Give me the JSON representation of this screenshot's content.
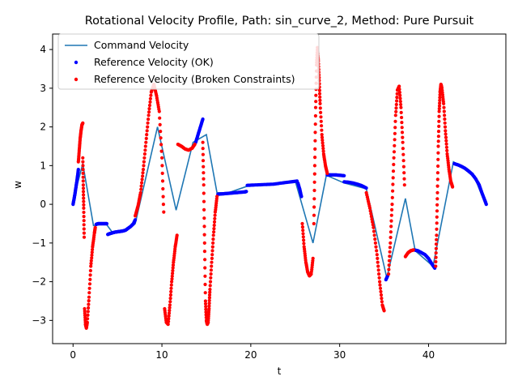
{
  "chart_data": {
    "type": "line",
    "title": "Rotational Velocity Profile, Path: sin_curve_2, Method: Pure Pursuit",
    "xlabel": "t",
    "ylabel": "w",
    "xlim": [
      -2.3,
      48.7
    ],
    "ylim": [
      -3.6,
      4.4
    ],
    "xticks": [
      0,
      10,
      20,
      30,
      40
    ],
    "yticks": [
      -3,
      -2,
      -1,
      0,
      1,
      2,
      3,
      4
    ],
    "grid": false,
    "legend_position": "top-left",
    "colors": {
      "command": "#1f77b4",
      "ok": "#0000ff",
      "broken": "#ff0000"
    },
    "series": [
      {
        "name": "Command Velocity",
        "kind": "line",
        "x": [
          0,
          1.1,
          2.3,
          3.7,
          4.5,
          6.5,
          7.0,
          9.5,
          11.6,
          13.5,
          15.0,
          16.2,
          17.5,
          20.0,
          23.0,
          25.0,
          27.0,
          28.5,
          30.5,
          33.0,
          35.3,
          37.4,
          38.5,
          40.5,
          42.8,
          45.0,
          46.4
        ],
        "y": [
          0.1,
          1.05,
          -0.55,
          -0.5,
          -0.75,
          -0.6,
          -0.5,
          2.0,
          -0.15,
          1.6,
          1.8,
          0.3,
          0.3,
          0.5,
          0.55,
          0.6,
          -1.0,
          0.75,
          0.55,
          0.4,
          -1.9,
          0.15,
          -1.2,
          -1.6,
          1.1,
          0.8,
          0.0
        ]
      },
      {
        "name": "Reference Velocity (OK)",
        "kind": "scatter",
        "segments": [
          {
            "x": [
              0,
              0.1,
              0.2,
              0.3,
              0.4,
              0.5,
              0.6
            ],
            "y": [
              0.0,
              0.12,
              0.25,
              0.4,
              0.55,
              0.72,
              0.9
            ]
          },
          {
            "x": [
              2.6,
              2.8,
              3.0,
              3.2,
              3.4,
              3.6,
              3.8
            ],
            "y": [
              -0.52,
              -0.5,
              -0.5,
              -0.5,
              -0.5,
              -0.5,
              -0.5
            ]
          },
          {
            "x": [
              3.9,
              4.1,
              4.4,
              4.7,
              5.0,
              5.3,
              5.6,
              5.9,
              6.2,
              6.5,
              6.8,
              7.0
            ],
            "y": [
              -0.78,
              -0.76,
              -0.74,
              -0.72,
              -0.71,
              -0.7,
              -0.69,
              -0.67,
              -0.62,
              -0.57,
              -0.5,
              -0.4
            ]
          },
          {
            "x": [
              13.8,
              14.0,
              14.2,
              14.4,
              14.6
            ],
            "y": [
              1.6,
              1.75,
              1.9,
              2.05,
              2.2
            ]
          },
          {
            "x": [
              16.3,
              16.8,
              17.3,
              17.8,
              18.3,
              18.8,
              19.3,
              19.5
            ],
            "y": [
              0.26,
              0.27,
              0.28,
              0.29,
              0.3,
              0.31,
              0.32,
              0.33
            ]
          },
          {
            "x": [
              19.6,
              20.5,
              21.5,
              22.5,
              23.5,
              24.5,
              25.2
            ],
            "y": [
              0.49,
              0.5,
              0.51,
              0.52,
              0.55,
              0.58,
              0.6
            ]
          },
          {
            "x": [
              25.3,
              25.5,
              25.7
            ],
            "y": [
              0.55,
              0.4,
              0.2
            ]
          },
          {
            "x": [
              28.6,
              29.0,
              29.5,
              30.0,
              30.5
            ],
            "y": [
              0.76,
              0.76,
              0.76,
              0.75,
              0.74
            ]
          },
          {
            "x": [
              30.5,
              31.0,
              31.5,
              32.0,
              32.5,
              33.0
            ],
            "y": [
              0.58,
              0.57,
              0.55,
              0.52,
              0.48,
              0.42
            ]
          },
          {
            "x": [
              35.2,
              35.4
            ],
            "y": [
              -1.95,
              -1.85
            ]
          },
          {
            "x": [
              38.4,
              38.8,
              39.2,
              39.6,
              40.0,
              40.4,
              40.7
            ],
            "y": [
              -1.18,
              -1.2,
              -1.25,
              -1.3,
              -1.4,
              -1.55,
              -1.65
            ]
          },
          {
            "x": [
              42.9,
              43.3,
              43.7,
              44.1,
              44.5,
              44.9,
              45.3,
              45.7,
              46.0,
              46.3,
              46.5
            ],
            "y": [
              1.05,
              1.02,
              0.98,
              0.93,
              0.86,
              0.78,
              0.66,
              0.5,
              0.3,
              0.12,
              0.0
            ]
          }
        ]
      },
      {
        "name": "Reference Velocity (Broken Constraints)",
        "kind": "scatter",
        "segments": [
          {
            "x": [
              0.6,
              0.7,
              0.8,
              0.9,
              1.0,
              1.1
            ],
            "y": [
              1.1,
              1.4,
              1.7,
              1.9,
              2.05,
              2.1
            ]
          },
          {
            "x": [
              1.1,
              1.15,
              1.2,
              1.25
            ],
            "y": [
              1.2,
              0.5,
              -0.1,
              -0.85
            ]
          },
          {
            "x": [
              1.3,
              1.4,
              1.5,
              1.6,
              1.8,
              2.0,
              2.2,
              2.4,
              2.5
            ],
            "y": [
              -2.7,
              -3.1,
              -3.2,
              -3.05,
              -2.4,
              -1.6,
              -1.1,
              -0.75,
              -0.6
            ]
          },
          {
            "x": [
              7.0,
              7.3,
              7.6,
              7.9,
              8.2,
              8.5,
              8.8,
              9.1,
              9.4,
              9.7,
              10.0,
              10.2
            ],
            "y": [
              -0.3,
              -0.05,
              0.3,
              0.9,
              1.6,
              2.3,
              2.9,
              3.1,
              2.8,
              2.4,
              1.2,
              -0.2
            ]
          },
          {
            "x": [
              10.3,
              10.5,
              10.7,
              10.9,
              11.1,
              11.3,
              11.5,
              11.7
            ],
            "y": [
              -2.7,
              -3.05,
              -3.1,
              -2.6,
              -2.0,
              -1.5,
              -1.1,
              -0.8
            ]
          },
          {
            "x": [
              11.8,
              12.2,
              12.6,
              13.0,
              13.4,
              13.7
            ],
            "y": [
              1.55,
              1.5,
              1.43,
              1.4,
              1.45,
              1.55
            ]
          },
          {
            "x": [
              14.6,
              14.7,
              14.8,
              14.9,
              15.0,
              15.1,
              15.2,
              15.3,
              15.4,
              15.6,
              15.8,
              16.0,
              16.2
            ],
            "y": [
              1.6,
              0.5,
              -1.0,
              -2.5,
              -3.0,
              -3.1,
              -3.05,
              -2.7,
              -2.2,
              -1.5,
              -0.8,
              -0.2,
              0.2
            ]
          },
          {
            "x": [
              25.8,
              26.0,
              26.2,
              26.4,
              26.6,
              26.8,
              27.0
            ],
            "y": [
              -0.5,
              -1.1,
              -1.5,
              -1.75,
              -1.85,
              -1.8,
              -1.4
            ]
          },
          {
            "x": [
              27.1,
              27.2,
              27.3,
              27.4,
              27.5,
              27.6,
              27.7,
              27.8,
              28.0,
              28.2,
              28.4,
              28.6
            ],
            "y": [
              -0.5,
              1.0,
              2.5,
              3.6,
              4.05,
              3.7,
              3.2,
              2.6,
              1.8,
              1.3,
              1.0,
              0.8
            ]
          },
          {
            "x": [
              33.0,
              33.4,
              33.8,
              34.2,
              34.5,
              34.8,
              35.0
            ],
            "y": [
              0.3,
              -0.1,
              -0.6,
              -1.3,
              -2.0,
              -2.6,
              -2.75
            ]
          },
          {
            "x": [
              35.5,
              35.7,
              35.9,
              36.1,
              36.3,
              36.5,
              36.7,
              36.9,
              37.1,
              37.3
            ],
            "y": [
              -1.8,
              -1.0,
              0.0,
              1.2,
              2.3,
              2.95,
              3.05,
              2.5,
              1.6,
              0.5
            ]
          },
          {
            "x": [
              37.4,
              37.7,
              38.0,
              38.3
            ],
            "y": [
              -1.35,
              -1.25,
              -1.2,
              -1.18
            ]
          },
          {
            "x": [
              40.8,
              40.9,
              41.0,
              41.1,
              41.2,
              41.3,
              41.4,
              41.5,
              41.7,
              41.9,
              42.1,
              42.3,
              42.5,
              42.7
            ],
            "y": [
              -1.6,
              -0.8,
              0.3,
              1.5,
              2.4,
              2.9,
              3.1,
              3.0,
              2.6,
              1.9,
              1.3,
              0.9,
              0.6,
              0.45
            ]
          }
        ]
      }
    ]
  }
}
